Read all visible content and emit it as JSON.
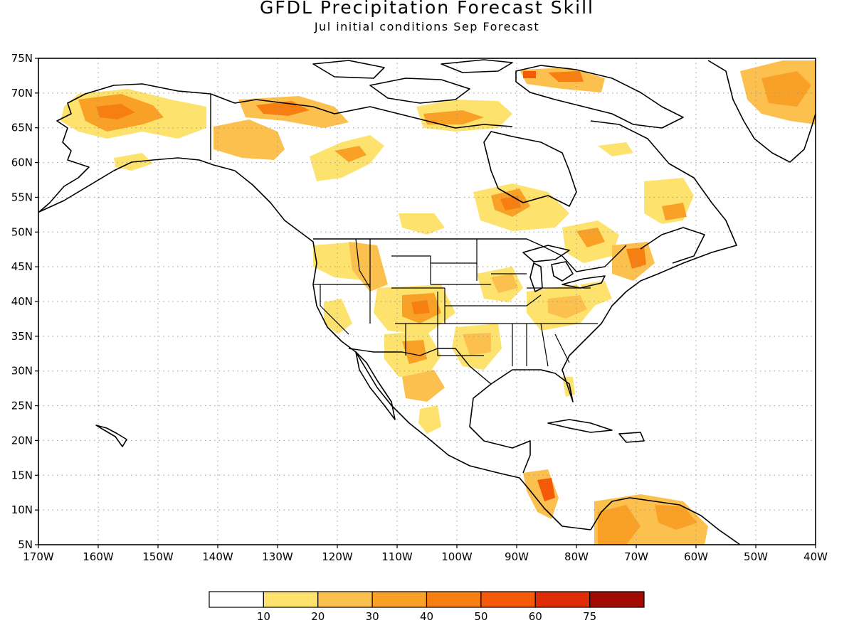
{
  "title": "GFDL Precipitation Forecast Skill",
  "subtitle": "Jul initial conditions  Sep Forecast",
  "map": {
    "lon_range": [
      -170,
      -40
    ],
    "lat_range": [
      5,
      75
    ],
    "lon_ticks": [
      "170W",
      "160W",
      "150W",
      "140W",
      "130W",
      "120W",
      "110W",
      "100W",
      "90W",
      "80W",
      "70W",
      "60W",
      "50W",
      "40W"
    ],
    "lat_ticks": [
      "5N",
      "10N",
      "15N",
      "20N",
      "25N",
      "30N",
      "35N",
      "40N",
      "45N",
      "50N",
      "55N",
      "60N",
      "65N",
      "70N",
      "75N"
    ],
    "gridlines": "dotted"
  },
  "colorbar": {
    "labels": [
      "10",
      "20",
      "30",
      "40",
      "50",
      "60",
      "75"
    ],
    "colors": [
      "#ffffff",
      "#fde36e",
      "#fbc04e",
      "#f9a027",
      "#f77f12",
      "#f45a08",
      "#dd2c06",
      "#a10a00"
    ]
  },
  "skill_regions": [
    {
      "region": "Northern Alaska",
      "level": "30-40"
    },
    {
      "region": "Yukon / NW Canada",
      "level": "30-40"
    },
    {
      "region": "Northern Greenland",
      "level": "20-30"
    },
    {
      "region": "Baffin Island",
      "level": "40-50"
    },
    {
      "region": "Hudson Bay south shore / Ontario",
      "level": "30-40"
    },
    {
      "region": "Colorado / Utah",
      "level": "30-40"
    },
    {
      "region": "New England / Maine",
      "level": "40-50"
    },
    {
      "region": "Central America (Nicaragua)",
      "level": "40-50"
    },
    {
      "region": "Northern South America",
      "level": "30-40"
    },
    {
      "region": "Mexico (Sierra Madre)",
      "level": "20-30"
    },
    {
      "region": "Ohio Valley",
      "level": "20-30"
    }
  ]
}
